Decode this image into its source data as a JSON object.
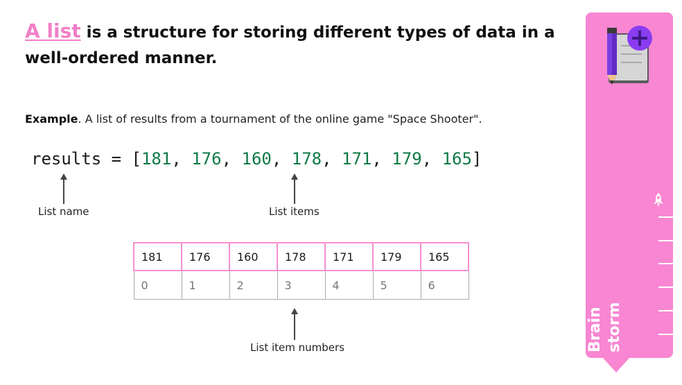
{
  "title": {
    "term": "A list",
    "rest": " is a structure for storing different types of data in a well-ordered manner."
  },
  "example": {
    "label": "Example",
    "text": ". A list of results from a tournament of the online game \"Space Shooter\"."
  },
  "code": {
    "variable": "results",
    "operator": " = ",
    "open": "[",
    "close": "]",
    "separator": ", ",
    "values": [
      "181",
      "176",
      "160",
      "178",
      "171",
      "179",
      "165"
    ]
  },
  "annotations": {
    "list_name": "List name",
    "list_items": "List items",
    "item_numbers": "List item numbers"
  },
  "table": {
    "items": [
      "181",
      "176",
      "160",
      "178",
      "171",
      "179",
      "165"
    ],
    "indices": [
      "0",
      "1",
      "2",
      "3",
      "4",
      "5",
      "6"
    ]
  },
  "panel": {
    "label_line1": "Brain",
    "label_line2": "storm",
    "icon": "notebook-pencil-plus-icon",
    "rocket_icon": "rocket-icon",
    "color": "#f886d2"
  },
  "colors": {
    "accent_pink": "#f27fc8",
    "number_green": "#0f7a45"
  }
}
